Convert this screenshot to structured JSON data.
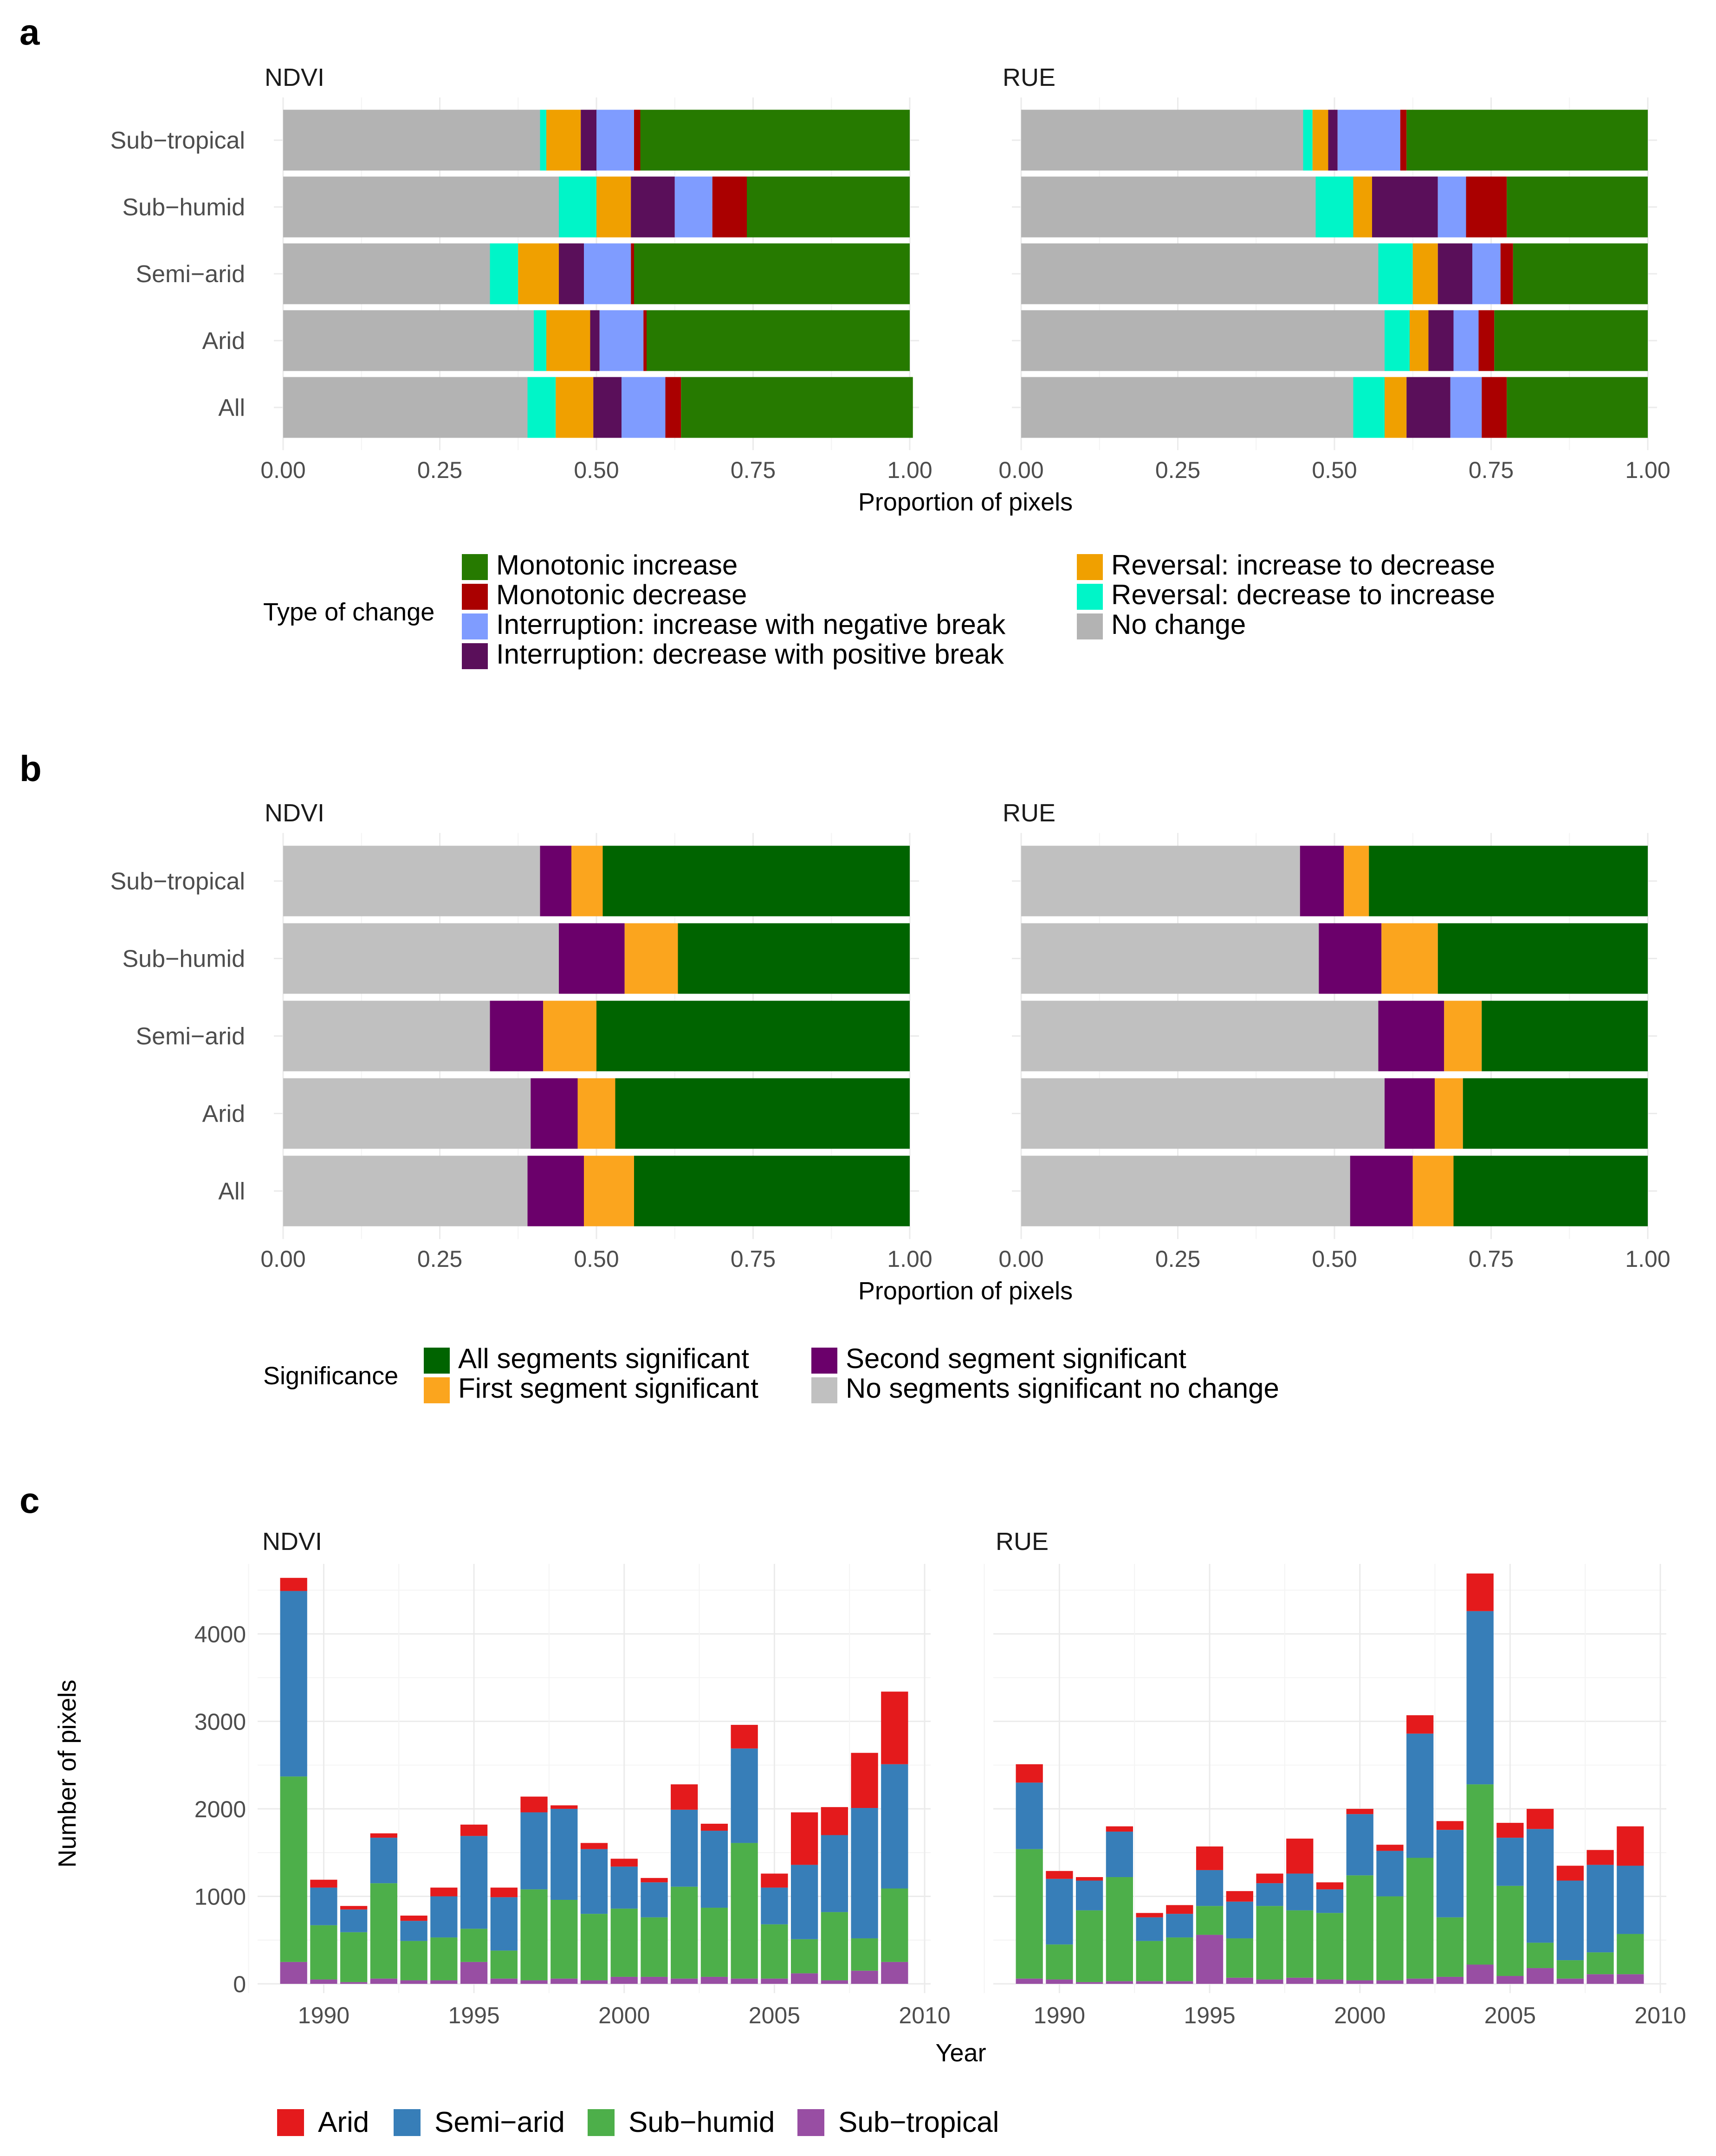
{
  "panels": {
    "a": {
      "letter": "a"
    },
    "b": {
      "letter": "b"
    },
    "c": {
      "letter": "c"
    }
  },
  "chart_data": [
    {
      "id": "a",
      "type": "bar",
      "orientation": "horizontal",
      "stacked": true,
      "facets": [
        "NDVI",
        "RUE"
      ],
      "categories": [
        "Sub−tropical",
        "Sub−humid",
        "Semi−arid",
        "Arid",
        "All"
      ],
      "xlabel": "Proportion of pixels",
      "xlim": [
        0,
        1
      ],
      "xticks": [
        "0.00",
        "0.25",
        "0.50",
        "0.75",
        "1.00"
      ],
      "legend_title": "Type of change",
      "legend_position": "bottom",
      "series": [
        {
          "name": "No change",
          "color": "#b3b3b3",
          "values": {
            "NDVI": [
              0.41,
              0.44,
              0.33,
              0.4,
              0.39
            ],
            "RUE": [
              0.45,
              0.47,
              0.57,
              0.58,
              0.53
            ]
          }
        },
        {
          "name": "Reversal: decrease to increase",
          "color": "#00f5c8",
          "values": {
            "NDVI": [
              0.01,
              0.06,
              0.045,
              0.02,
              0.045
            ],
            "RUE": [
              0.015,
              0.06,
              0.055,
              0.04,
              0.05
            ]
          }
        },
        {
          "name": "Reversal: increase to decrease",
          "color": "#f0a000",
          "values": {
            "NDVI": [
              0.055,
              0.055,
              0.065,
              0.07,
              0.06
            ],
            "RUE": [
              0.025,
              0.03,
              0.04,
              0.03,
              0.035
            ]
          }
        },
        {
          "name": "Interruption: decrease with positive break",
          "color": "#5a0f5a",
          "values": {
            "NDVI": [
              0.025,
              0.07,
              0.04,
              0.015,
              0.045
            ],
            "RUE": [
              0.015,
              0.105,
              0.055,
              0.04,
              0.07
            ]
          }
        },
        {
          "name": "Interruption: increase with negative break",
          "color": "#7f9cff",
          "values": {
            "NDVI": [
              0.06,
              0.06,
              0.075,
              0.07,
              0.07
            ],
            "RUE": [
              0.1,
              0.045,
              0.045,
              0.04,
              0.05
            ]
          }
        },
        {
          "name": "Monotonic decrease",
          "color": "#aa0000",
          "values": {
            "NDVI": [
              0.01,
              0.055,
              0.005,
              0.005,
              0.025
            ],
            "RUE": [
              0.01,
              0.065,
              0.02,
              0.025,
              0.04
            ]
          }
        },
        {
          "name": "Monotonic increase",
          "color": "#267a00",
          "values": {
            "NDVI": [
              0.43,
              0.26,
              0.44,
              0.42,
              0.37
            ],
            "RUE": [
              0.385,
              0.225,
              0.215,
              0.245,
              0.225
            ]
          }
        }
      ],
      "legend_order": [
        "Monotonic increase",
        "Monotonic decrease",
        "Interruption: increase with negative break",
        "Interruption: decrease with positive break",
        "Reversal: increase to decrease",
        "Reversal: decrease to increase",
        "No change"
      ]
    },
    {
      "id": "b",
      "type": "bar",
      "orientation": "horizontal",
      "stacked": true,
      "facets": [
        "NDVI",
        "RUE"
      ],
      "categories": [
        "Sub−tropical",
        "Sub−humid",
        "Semi−arid",
        "Arid",
        "All"
      ],
      "xlabel": "Proportion of pixels",
      "xlim": [
        0,
        1
      ],
      "xticks": [
        "0.00",
        "0.25",
        "0.50",
        "0.75",
        "1.00"
      ],
      "legend_title": "Significance",
      "legend_position": "bottom",
      "series": [
        {
          "name": "No segments significant no change",
          "color": "#c0c0c0",
          "values": {
            "NDVI": [
              0.41,
              0.44,
              0.33,
              0.395,
              0.39
            ],
            "RUE": [
              0.445,
              0.475,
              0.57,
              0.58,
              0.525
            ]
          }
        },
        {
          "name": "Second segment significant",
          "color": "#6b006b",
          "values": {
            "NDVI": [
              0.05,
              0.105,
              0.085,
              0.075,
              0.09
            ],
            "RUE": [
              0.07,
              0.1,
              0.105,
              0.08,
              0.1
            ]
          }
        },
        {
          "name": "First segment significant",
          "color": "#fba51e",
          "values": {
            "NDVI": [
              0.05,
              0.085,
              0.085,
              0.06,
              0.08
            ],
            "RUE": [
              0.04,
              0.09,
              0.06,
              0.045,
              0.065
            ]
          }
        },
        {
          "name": "All segments significant",
          "color": "#006400",
          "values": {
            "NDVI": [
              0.49,
              0.37,
              0.5,
              0.47,
              0.44
            ],
            "RUE": [
              0.445,
              0.335,
              0.265,
              0.295,
              0.31
            ]
          }
        }
      ],
      "legend_order": [
        "All segments significant",
        "First segment significant",
        "Second segment significant",
        "No segments significant no change"
      ]
    },
    {
      "id": "c",
      "type": "bar",
      "orientation": "vertical",
      "stacked": true,
      "facets": [
        "NDVI",
        "RUE"
      ],
      "x": [
        1989,
        1990,
        1991,
        1992,
        1993,
        1994,
        1995,
        1996,
        1997,
        1998,
        1999,
        2000,
        2001,
        2002,
        2003,
        2004,
        2005,
        2006,
        2007,
        2008,
        2009
      ],
      "xlabel": "Year",
      "ylabel": "Number of pixels",
      "xlim": [
        1987.8,
        2010.2
      ],
      "ylim": [
        0,
        4800
      ],
      "xticks": [
        "1990",
        "1995",
        "2000",
        "2005",
        "2010"
      ],
      "yticks": [
        "0",
        "1000",
        "2000",
        "3000",
        "4000"
      ],
      "legend_position": "bottom",
      "series": [
        {
          "name": "Sub−tropical",
          "color": "#984ea3",
          "values": {
            "NDVI": [
              250,
              50,
              20,
              60,
              40,
              40,
              250,
              60,
              40,
              60,
              40,
              80,
              80,
              60,
              80,
              60,
              60,
              120,
              40,
              150,
              250
            ],
            "RUE": [
              60,
              50,
              20,
              30,
              30,
              30,
              560,
              70,
              50,
              70,
              50,
              40,
              40,
              60,
              80,
              220,
              90,
              180,
              60,
              110,
              110
            ]
          }
        },
        {
          "name": "Sub−humid",
          "color": "#4daf4a",
          "values": {
            "NDVI": [
              2120,
              620,
              570,
              1090,
              450,
              490,
              380,
              320,
              1040,
              900,
              760,
              780,
              680,
              1050,
              790,
              1550,
              620,
              390,
              780,
              370,
              840
            ],
            "RUE": [
              1480,
              400,
              820,
              1190,
              460,
              500,
              330,
              450,
              840,
              770,
              760,
              1200,
              960,
              1380,
              680,
              2060,
              1030,
              290,
              210,
              250,
              460
            ]
          }
        },
        {
          "name": "Semi−arid",
          "color": "#377eb8",
          "values": {
            "NDVI": [
              2120,
              430,
              260,
              520,
              230,
              470,
              1060,
              610,
              880,
              1040,
              740,
              480,
              400,
              880,
              880,
              1080,
              420,
              850,
              880,
              1490,
              1420
            ],
            "RUE": [
              760,
              750,
              340,
              520,
              270,
              270,
              410,
              420,
              260,
              420,
              270,
              700,
              520,
              1420,
              1000,
              1980,
              550,
              1300,
              910,
              1000,
              780
            ]
          }
        },
        {
          "name": "Arid",
          "color": "#e41a1c",
          "values": {
            "NDVI": [
              150,
              90,
              40,
              50,
              60,
              100,
              130,
              110,
              180,
              40,
              70,
              90,
              50,
              290,
              80,
              270,
              160,
              600,
              320,
              630,
              830
            ],
            "RUE": [
              210,
              90,
              40,
              60,
              50,
              100,
              270,
              120,
              110,
              400,
              80,
              60,
              70,
              210,
              100,
              430,
              170,
              230,
              170,
              170,
              450
            ]
          }
        }
      ],
      "legend_order": [
        "Arid",
        "Semi−arid",
        "Sub−humid",
        "Sub−tropical"
      ]
    }
  ]
}
